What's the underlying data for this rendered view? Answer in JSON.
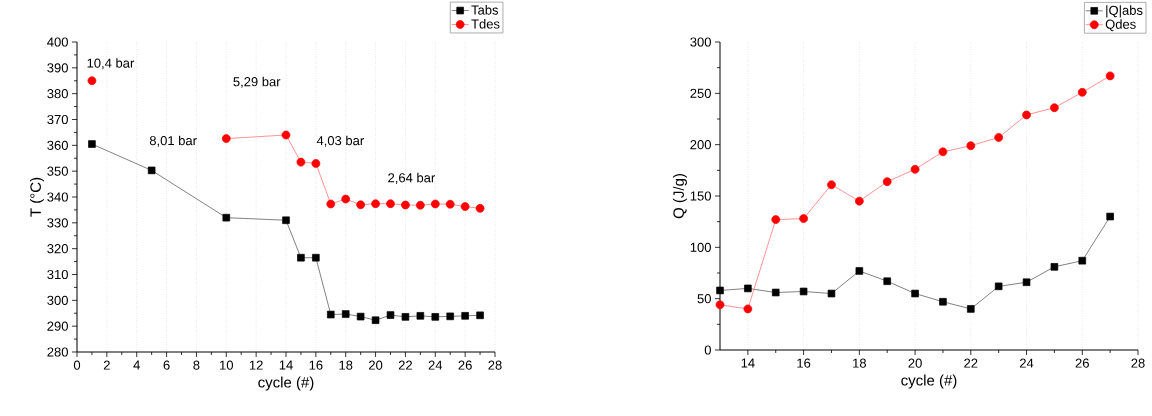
{
  "chart_data": [
    {
      "type": "line",
      "xlabel": "cycle (#)",
      "ylabel": "T (°C)",
      "xlim": [
        0,
        28
      ],
      "ylim": [
        280,
        400
      ],
      "xticks": [
        0,
        2,
        4,
        6,
        8,
        10,
        12,
        14,
        16,
        18,
        20,
        22,
        24,
        26,
        28
      ],
      "yticks": [
        280,
        290,
        300,
        310,
        320,
        330,
        340,
        350,
        360,
        370,
        380,
        390,
        400
      ],
      "grid": "x",
      "legend": "top right",
      "line_style": "solid",
      "series": [
        {
          "name": "Tabs",
          "color": "#000000",
          "marker": "square",
          "x": [
            1,
            5,
            10,
            14,
            15,
            16,
            17,
            18,
            19,
            20,
            21,
            22,
            23,
            24,
            25,
            26,
            27
          ],
          "values": [
            360.5,
            350.3,
            332,
            331,
            316.5,
            316.5,
            294.5,
            294.7,
            293.7,
            292.3,
            294.3,
            293.6,
            294,
            293.6,
            293.8,
            294,
            294.2
          ]
        },
        {
          "name": "Tdes",
          "color": "#ff0000",
          "marker": "circle",
          "x": [
            1,
            5,
            10,
            14,
            15,
            16,
            17,
            18,
            19,
            20,
            21,
            22,
            23,
            24,
            25,
            26,
            27
          ],
          "values": [
            385,
            null,
            362.6,
            364,
            353.5,
            353,
            337.3,
            339.2,
            337,
            337.4,
            337.4,
            336.9,
            336.8,
            337.3,
            337.2,
            336.3,
            335.6
          ]
        }
      ],
      "annotations": [
        "10,4 bar",
        "8,01 bar",
        "5,29 bar",
        "4,03 bar",
        "2,64 bar"
      ]
    },
    {
      "type": "line",
      "xlabel": "cycle (#)",
      "ylabel": "Q (J/g)",
      "xlim": [
        13,
        28
      ],
      "ylim": [
        0,
        300
      ],
      "xticks": [
        14,
        16,
        18,
        20,
        22,
        24,
        26,
        28
      ],
      "yticks": [
        0,
        50,
        100,
        150,
        200,
        250,
        300
      ],
      "grid": "x",
      "legend": "top right",
      "line_style": "solid",
      "series": [
        {
          "name": "|Q|abs",
          "color": "#000000",
          "marker": "square",
          "x": [
            13,
            14,
            15,
            16,
            17,
            18,
            19,
            20,
            21,
            22,
            23,
            24,
            25,
            26,
            27
          ],
          "values": [
            58,
            60,
            56,
            57,
            55,
            77,
            67,
            55,
            47,
            40,
            62,
            66,
            81,
            87,
            130
          ]
        },
        {
          "name": "Qdes",
          "color": "#ff0000",
          "marker": "circle",
          "x": [
            13,
            14,
            15,
            16,
            17,
            18,
            19,
            20,
            21,
            22,
            23,
            24,
            25,
            26,
            27
          ],
          "values": [
            44,
            40,
            127,
            128,
            161,
            145,
            164,
            176,
            193,
            199,
            207,
            229,
            236,
            251,
            267
          ]
        }
      ]
    }
  ]
}
